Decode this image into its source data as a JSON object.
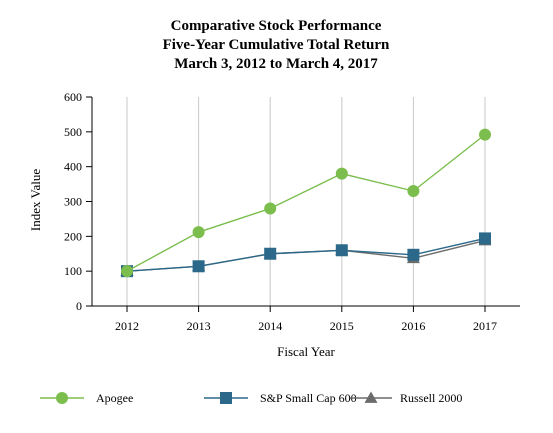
{
  "chart_data": {
    "type": "line",
    "title_lines": [
      "Comparative Stock Performance",
      "Five-Year Cumulative Total Return",
      "March 3, 2012 to March 4, 2017"
    ],
    "xlabel": "Fiscal Year",
    "ylabel": "Index Value",
    "ylim": [
      0,
      600
    ],
    "yticks": [
      "0",
      "100",
      "200",
      "300",
      "400",
      "500",
      "600"
    ],
    "categories": [
      "2012",
      "2013",
      "2014",
      "2015",
      "2016",
      "2017"
    ],
    "grid": "vertical",
    "legend_position": "bottom",
    "series": [
      {
        "name": "Apogee",
        "marker": "circle",
        "color": "#7cbe4e",
        "values": [
          100,
          212,
          280,
          380,
          330,
          492
        ]
      },
      {
        "name": "S&P Small Cap 600",
        "marker": "square",
        "color": "#2b6889",
        "values": [
          100,
          114,
          150,
          160,
          147,
          194
        ]
      },
      {
        "name": "Russell 2000",
        "marker": "triangle",
        "color": "#6b6b6b",
        "values": [
          100,
          114,
          150,
          160,
          137,
          188
        ]
      }
    ]
  }
}
